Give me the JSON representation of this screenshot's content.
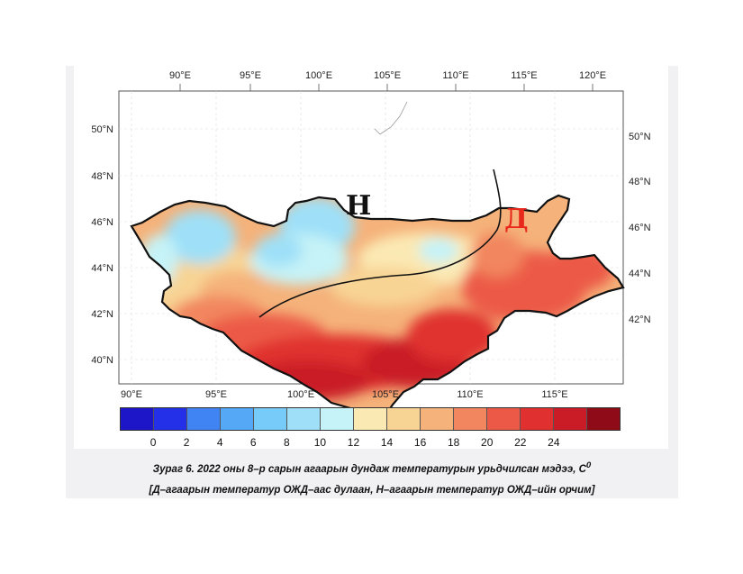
{
  "map": {
    "top_lon_labels": [
      "90°E",
      "95°E",
      "100°E",
      "105°E",
      "110°E",
      "115°E",
      "120°E"
    ],
    "bottom_lon_labels": [
      "90°E",
      "95°E",
      "100°E",
      "105°E",
      "110°E",
      "115°E"
    ],
    "left_lat_labels": [
      "50°N",
      "48°N",
      "46°N",
      "44°N",
      "42°N",
      "40°N"
    ],
    "right_lat_labels": [
      "50°N",
      "48°N",
      "46°N",
      "44°N",
      "42°N"
    ],
    "region_label_n": "Н",
    "region_label_d": "Д",
    "color_n": "#111111",
    "color_d": "#e8281a"
  },
  "colorbar": {
    "colors": [
      "#1c16c8",
      "#2430e8",
      "#3f84f2",
      "#55a8f6",
      "#76cbf9",
      "#9fe0f8",
      "#c6f3f7",
      "#fbe9b4",
      "#f8d494",
      "#f5b27a",
      "#f2865f",
      "#ec5a47",
      "#e0302f",
      "#c91c26",
      "#8e0b17"
    ],
    "labels": [
      "0",
      "2",
      "4",
      "6",
      "8",
      "10",
      "12",
      "14",
      "16",
      "18",
      "20",
      "22",
      "24"
    ]
  },
  "caption": {
    "line1": "Зураг 6. 2022 оны 8–р сарын агаарын дундаж температурын урьдчилсан мэдээ, C",
    "line1_sup": "0",
    "line2": "[Д–агаарын температур ОЖД–аас дулаан, Н–агаарын температур ОЖД–ийн орчим]"
  }
}
